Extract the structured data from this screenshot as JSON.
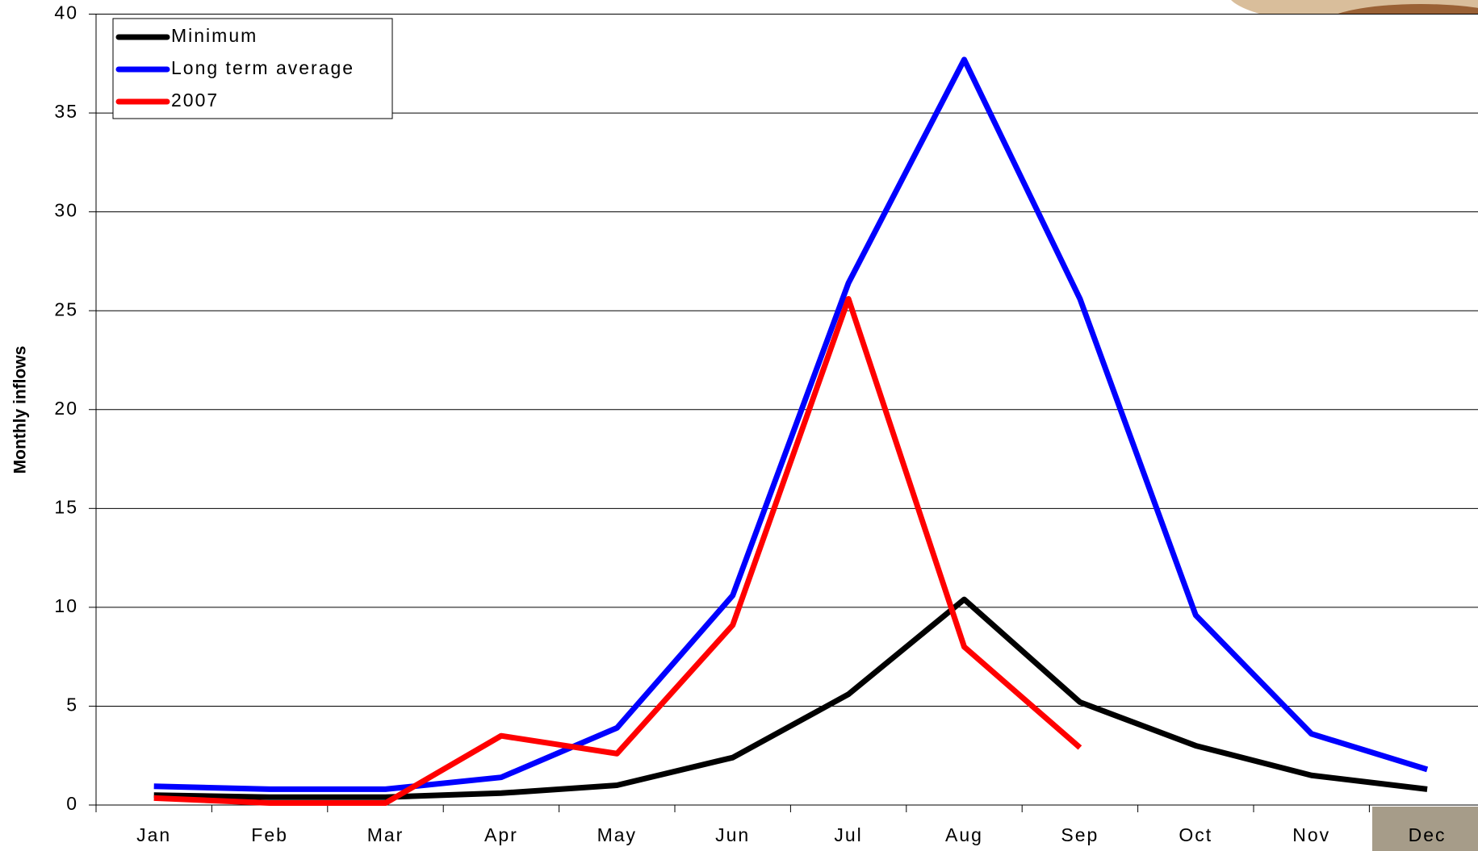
{
  "chart_data": {
    "type": "line",
    "y_label": "Monthly inflows",
    "categories": [
      "Jan",
      "Feb",
      "Mar",
      "Apr",
      "May",
      "Jun",
      "Jul",
      "Aug",
      "Sep",
      "Oct",
      "Nov",
      "Dec"
    ],
    "series": [
      {
        "name": "Minimum",
        "color": "#000000",
        "values": [
          0.5,
          0.4,
          0.4,
          0.6,
          1.0,
          2.4,
          5.6,
          10.4,
          5.2,
          3.0,
          1.5,
          0.8
        ]
      },
      {
        "name": "Long term average",
        "color": "#0000ff",
        "values": [
          0.95,
          0.8,
          0.8,
          1.4,
          3.9,
          10.6,
          26.4,
          37.7,
          25.6,
          9.6,
          3.6,
          1.8
        ]
      },
      {
        "name": "2007",
        "color": "#ff0000",
        "values": [
          0.35,
          0.1,
          0.1,
          3.5,
          2.6,
          9.1,
          25.6,
          8.0,
          2.9,
          null,
          null,
          null
        ]
      }
    ],
    "ylim": [
      0,
      40
    ],
    "yticks": [
      0,
      5,
      10,
      15,
      20,
      25,
      30,
      35,
      40
    ],
    "grid": true
  }
}
